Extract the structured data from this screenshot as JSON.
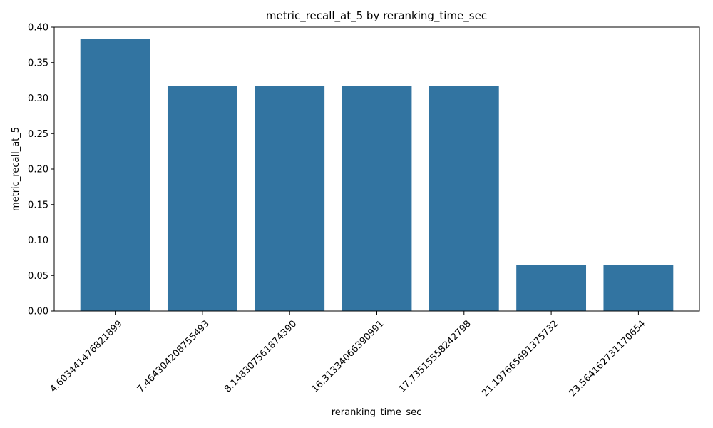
{
  "chart_data": {
    "type": "bar",
    "title": "metric_recall_at_5 by reranking_time_sec",
    "xlabel": "reranking_time_sec",
    "ylabel": "metric_recall_at_5",
    "categories": [
      "4.603441476821899",
      "7.464304208755493",
      "8.148307561874390",
      "16.31334066390991",
      "17.73515558242798",
      "21.197665691375732",
      "23.564162731170654"
    ],
    "values": [
      0.3833,
      0.3167,
      0.3167,
      0.3167,
      0.3167,
      0.065,
      0.065
    ],
    "ylim": [
      0,
      0.4
    ],
    "yticks": [
      0.0,
      0.05,
      0.1,
      0.15,
      0.2,
      0.25,
      0.3,
      0.35,
      0.4
    ],
    "ytick_labels": [
      "0.00",
      "0.05",
      "0.10",
      "0.15",
      "0.20",
      "0.25",
      "0.30",
      "0.35",
      "0.40"
    ],
    "grid": false,
    "bar_color": "#3274a1"
  }
}
